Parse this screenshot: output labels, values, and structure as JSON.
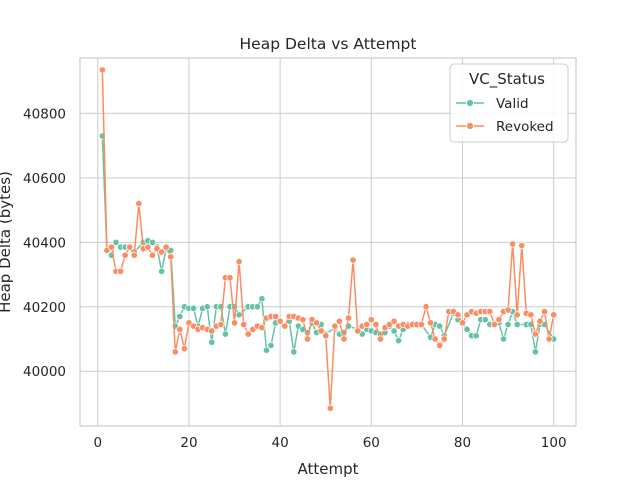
{
  "chart_data": {
    "type": "line",
    "title": "Heap Delta vs Attempt",
    "xlabel": "Attempt",
    "ylabel": "Heap Delta (bytes)",
    "xlim": [
      -3.9,
      104.9
    ],
    "ylim": [
      39830,
      40972
    ],
    "xticks": [
      0,
      20,
      40,
      60,
      80,
      100
    ],
    "yticks": [
      40000,
      40200,
      40400,
      40600,
      40800
    ],
    "grid": true,
    "legend": {
      "title": "VC_Status",
      "placement": "top-right"
    },
    "series": [
      {
        "name": "Valid",
        "color": "#66c2a5",
        "x": [
          1,
          2,
          3,
          4,
          5,
          6,
          7,
          8,
          10,
          11,
          12,
          13,
          14,
          15,
          16,
          17,
          18,
          19,
          20,
          21,
          22,
          23,
          24,
          25,
          26,
          27,
          28,
          29,
          30,
          31,
          33,
          34,
          35,
          36,
          37,
          38,
          39,
          40,
          41,
          42,
          43,
          44,
          45,
          46,
          47,
          48,
          49,
          50,
          52,
          53,
          54,
          55,
          57,
          58,
          59,
          60,
          61,
          62,
          63,
          64,
          65,
          66,
          67,
          68,
          69,
          70,
          71,
          73,
          74,
          75,
          76,
          78,
          79,
          80,
          81,
          82,
          83,
          84,
          85,
          86,
          87,
          88,
          89,
          90,
          91,
          92,
          94,
          95,
          96,
          97,
          98,
          100
        ],
        "y": [
          40730,
          40375,
          40360,
          40400,
          40385,
          40385,
          40385,
          40370,
          40400,
          40405,
          40400,
          40385,
          40310,
          40380,
          40375,
          40140,
          40170,
          40200,
          40195,
          40195,
          40140,
          40195,
          40200,
          40090,
          40200,
          40200,
          40115,
          40200,
          40200,
          40175,
          40200,
          40200,
          40200,
          40225,
          40065,
          40080,
          40150,
          40155,
          40140,
          40155,
          40060,
          40140,
          40130,
          40120,
          40150,
          40120,
          40145,
          40115,
          40135,
          40115,
          40120,
          40140,
          40130,
          40115,
          40130,
          40125,
          40120,
          40115,
          40120,
          40140,
          40125,
          40095,
          40130,
          40145,
          40145,
          40145,
          40145,
          40105,
          40145,
          40140,
          40110,
          40180,
          40160,
          40150,
          40130,
          40110,
          40110,
          40160,
          40160,
          40145,
          40145,
          40150,
          40100,
          40145,
          40185,
          40145,
          40145,
          40145,
          40060,
          40145,
          40145,
          40100
        ]
      },
      {
        "name": "Revoked",
        "color": "#fc8d62",
        "x": [
          1,
          2,
          3,
          4,
          5,
          6,
          7,
          8,
          9,
          10,
          11,
          12,
          13,
          14,
          15,
          16,
          17,
          18,
          19,
          20,
          21,
          22,
          23,
          24,
          25,
          26,
          27,
          28,
          29,
          30,
          31,
          32,
          33,
          34,
          35,
          36,
          37,
          38,
          39,
          40,
          41,
          42,
          43,
          44,
          45,
          46,
          47,
          48,
          49,
          50,
          51,
          52,
          53,
          54,
          55,
          56,
          57,
          58,
          59,
          60,
          61,
          62,
          63,
          64,
          65,
          66,
          67,
          68,
          69,
          70,
          71,
          72,
          73,
          74,
          75,
          76,
          77,
          78,
          79,
          80,
          81,
          82,
          83,
          84,
          85,
          86,
          87,
          88,
          89,
          90,
          91,
          92,
          93,
          94,
          95,
          96,
          97,
          98,
          99,
          100
        ],
        "y": [
          40935,
          40375,
          40385,
          40310,
          40310,
          40360,
          40385,
          40360,
          40520,
          40380,
          40385,
          40360,
          40380,
          40370,
          40385,
          40355,
          40060,
          40130,
          40070,
          40150,
          40140,
          40130,
          40135,
          40130,
          40125,
          40140,
          40145,
          40290,
          40290,
          40150,
          40340,
          40145,
          40115,
          40130,
          40140,
          40135,
          40165,
          40170,
          40170,
          40155,
          40140,
          40170,
          40170,
          40165,
          40160,
          40100,
          40160,
          40150,
          40125,
          40110,
          39885,
          40140,
          40155,
          40100,
          40165,
          40345,
          40125,
          40140,
          40145,
          40160,
          40145,
          40100,
          40135,
          40145,
          40155,
          40140,
          40145,
          40140,
          40145,
          40145,
          40145,
          40200,
          40150,
          40100,
          40080,
          40100,
          40185,
          40185,
          40175,
          40150,
          40175,
          40185,
          40180,
          40185,
          40185,
          40185,
          40145,
          40160,
          40185,
          40190,
          40395,
          40175,
          40390,
          40180,
          40175,
          40115,
          40155,
          40185,
          40100,
          40175
        ]
      }
    ]
  }
}
